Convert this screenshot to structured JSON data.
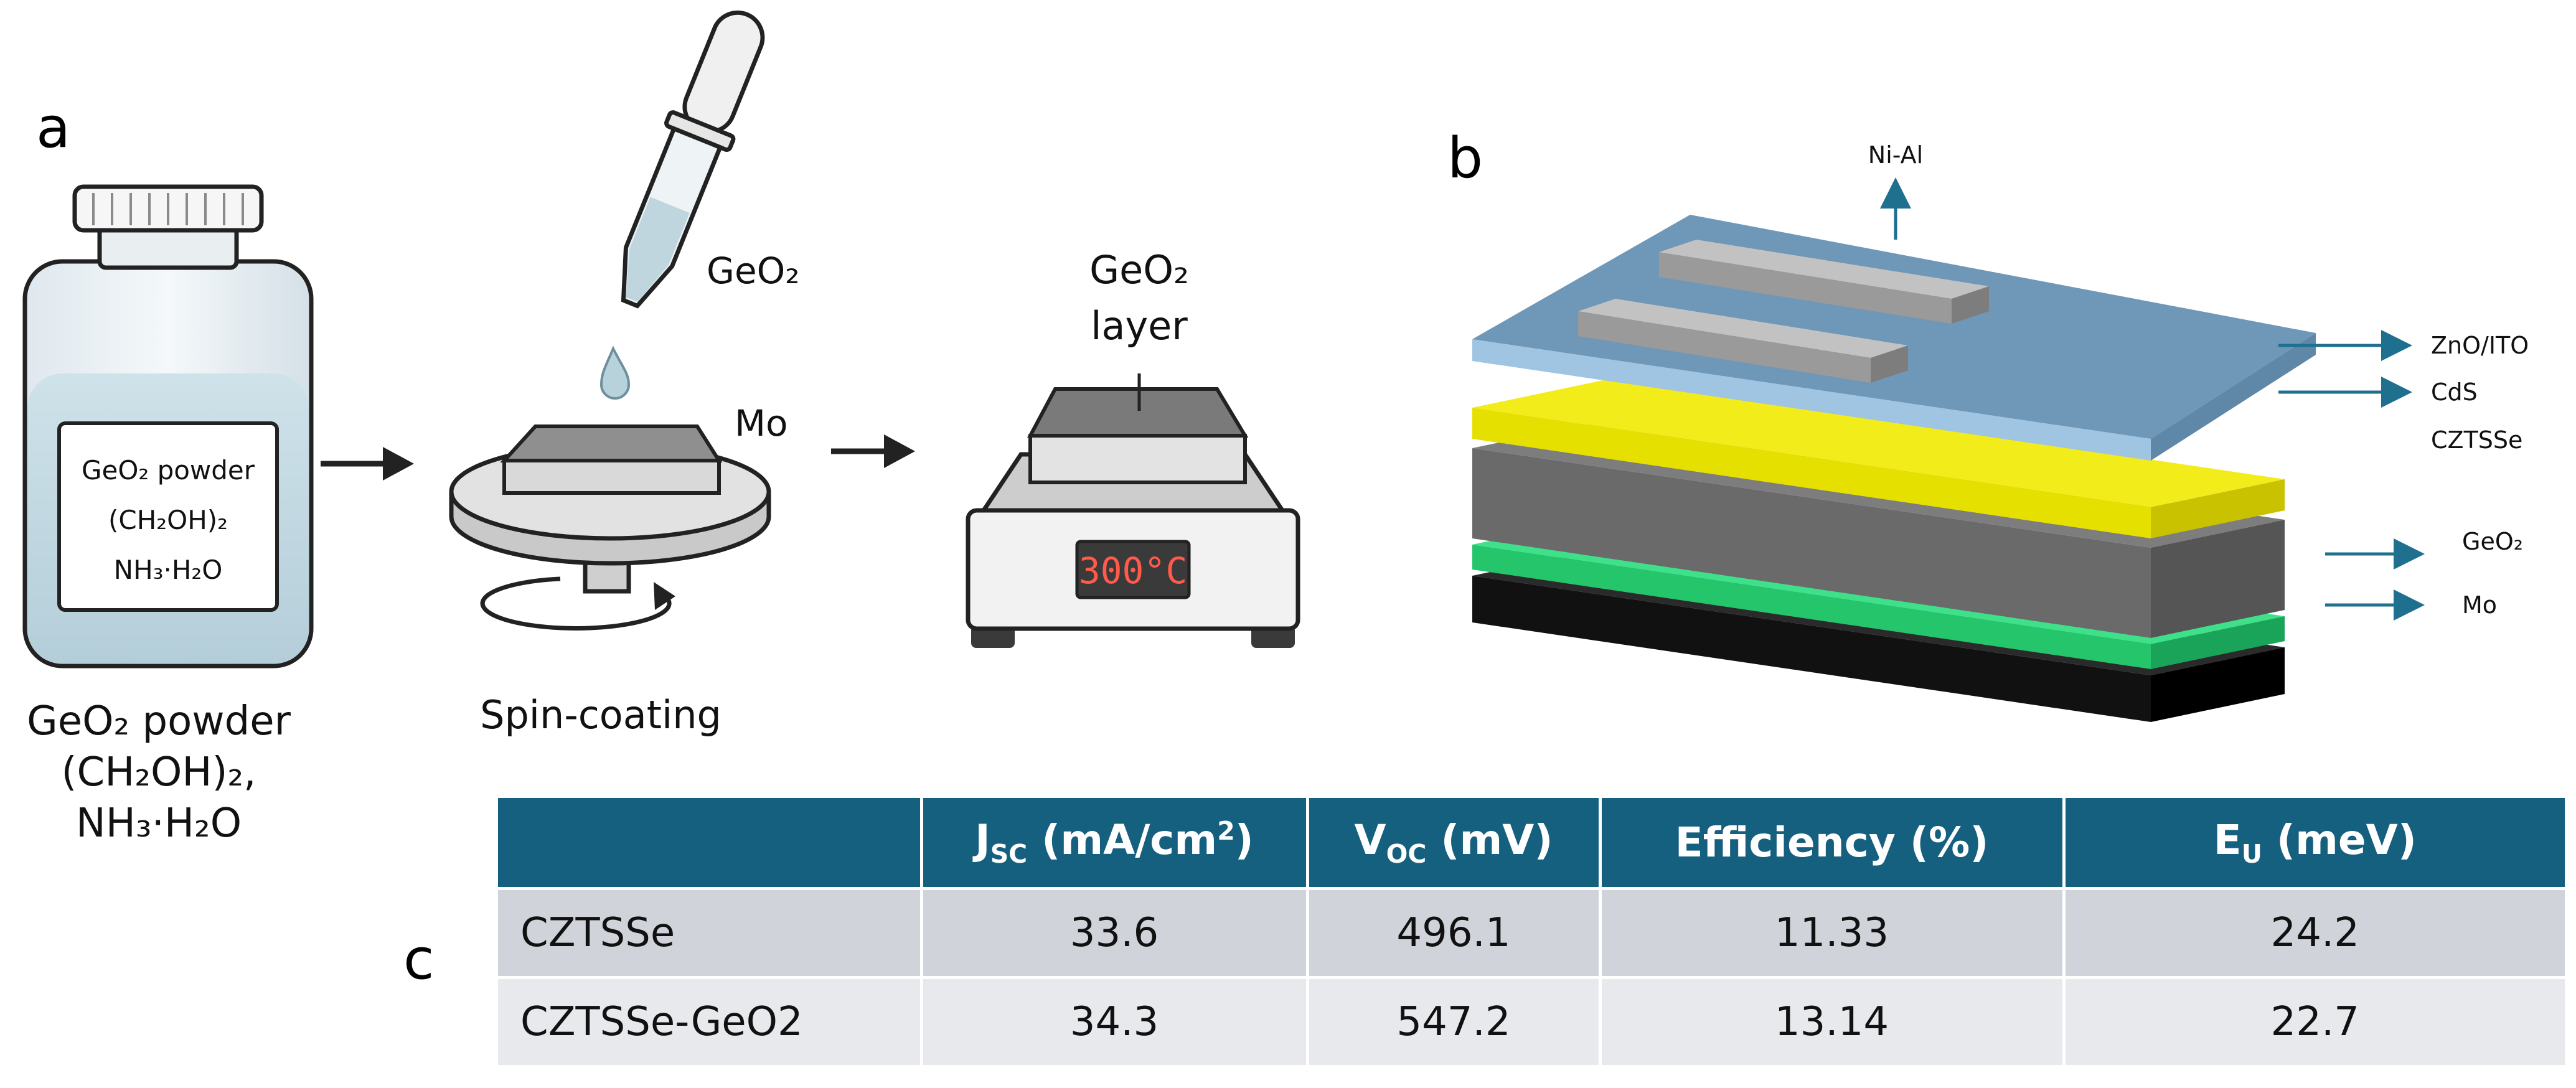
{
  "panel_a": {
    "letter": "a",
    "bottle": {
      "label_line1": "GeO₂ powder",
      "label_line2": "(CH₂OH)₂",
      "label_line3": "NH₃·H₂O"
    },
    "caption_line1": "GeO₂ powder",
    "caption_line2": "(CH₂OH)₂,",
    "caption_line3": "NH₃·H₂O",
    "dropper_label": "GeO₂",
    "substrate_label": "Mo",
    "spin_caption": "Spin-coating",
    "layer_label_line1": "GeO₂",
    "layer_label_line2": "layer",
    "hotplate_display": "300°C"
  },
  "panel_b": {
    "letter": "b",
    "top_contact": "Ni-Al",
    "layers": [
      "ZnO/ITO",
      "CdS",
      "CZTSSe",
      "GeO₂",
      "Mo"
    ]
  },
  "panel_c": {
    "letter": "c",
    "headers": {
      "jsc_main": "J",
      "jsc_sub": "SC",
      "jsc_unit_a": " (mA/cm",
      "jsc_sup": "2",
      "jsc_unit_b": ")",
      "voc_main": "V",
      "voc_sub": "OC",
      "voc_unit": " (mV)",
      "eff": "Efficiency (%)",
      "eu_main": "E",
      "eu_sub": "U",
      "eu_unit": " (meV)"
    },
    "rows": [
      {
        "name": "CZTSSe",
        "jsc": "33.6",
        "voc": "496.1",
        "eff": "11.33",
        "eu": "24.2"
      },
      {
        "name": "CZTSSe-GeO2",
        "jsc": "34.3",
        "voc": "547.2",
        "eff": "13.14",
        "eu": "22.7"
      }
    ]
  },
  "colors": {
    "table_header": "#15607f",
    "zno_ito": "#8fb6d6",
    "cds": "#e6e000",
    "czts": "#6b6b6b",
    "geo2": "#2fd07a",
    "mo": "#1a1a1a",
    "arrow": "#1f6f8f"
  }
}
